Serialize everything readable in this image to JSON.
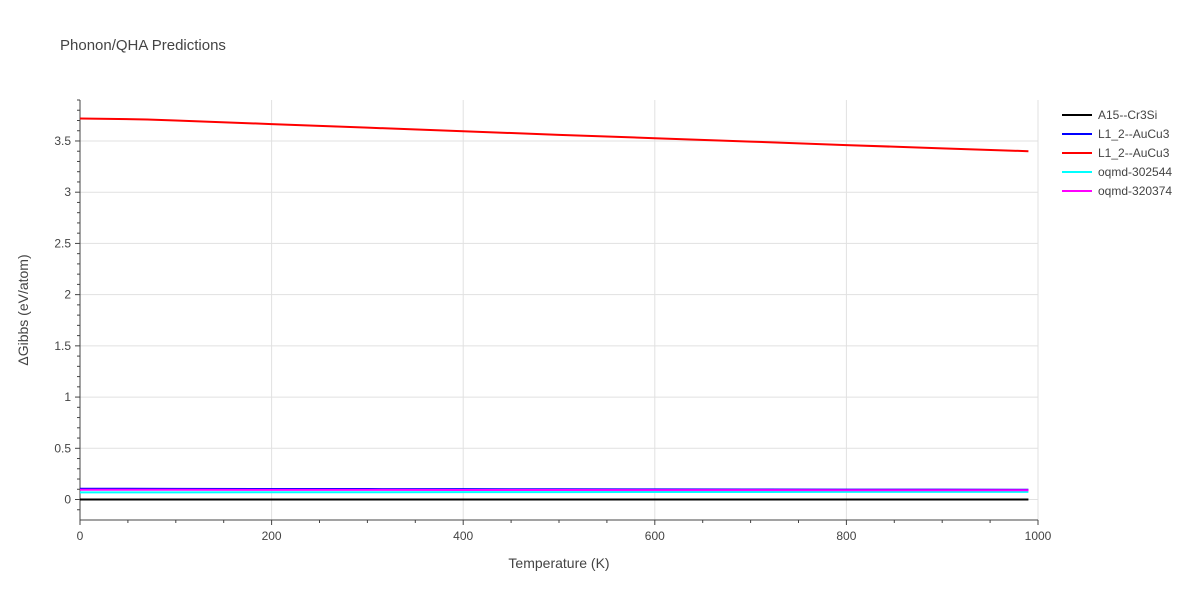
{
  "chart_data": {
    "type": "line",
    "title": "Phonon/QHA Predictions",
    "xlabel": "Temperature (K)",
    "ylabel": "ΔGibbs (eV/atom)",
    "xlim": [
      0,
      1000
    ],
    "ylim": [
      -0.2,
      3.9
    ],
    "grid": true,
    "legend_position": "top-right",
    "x_ticks": [
      0,
      200,
      400,
      600,
      800,
      1000
    ],
    "x_tick_labels": [
      "0",
      "200",
      "400",
      "600",
      "800",
      "1000"
    ],
    "y_ticks": [
      0,
      0.5,
      1,
      1.5,
      2,
      2.5,
      3,
      3.5
    ],
    "y_tick_labels": [
      "0",
      "0.5",
      "1",
      "1.5",
      "2",
      "2.5",
      "3",
      "3.5"
    ],
    "series": [
      {
        "name": "A15--Cr3Si",
        "color": "#000000",
        "x": [
          0,
          100,
          200,
          300,
          400,
          500,
          600,
          700,
          800,
          900,
          990
        ],
        "y": [
          0,
          0,
          0,
          0,
          0,
          0,
          0,
          0,
          0,
          0,
          0
        ]
      },
      {
        "name": "L1_2--AuCu3",
        "color": "#0000ff",
        "x": [
          0,
          100,
          200,
          300,
          400,
          500,
          600,
          700,
          800,
          900,
          990
        ],
        "y": [
          0.105,
          0.104,
          0.103,
          0.102,
          0.101,
          0.1,
          0.099,
          0.098,
          0.097,
          0.096,
          0.095
        ]
      },
      {
        "name": "L1_2--AuCu3",
        "color": "#ff0000",
        "x": [
          0,
          70,
          100,
          200,
          300,
          400,
          500,
          600,
          700,
          800,
          900,
          990
        ],
        "y": [
          3.72,
          3.71,
          3.7,
          3.665,
          3.63,
          3.595,
          3.56,
          3.527,
          3.494,
          3.46,
          3.428,
          3.4
        ]
      },
      {
        "name": "oqmd-302544",
        "color": "#00ffff",
        "x": [
          0,
          100,
          200,
          300,
          400,
          500,
          600,
          700,
          800,
          900,
          990
        ],
        "y": [
          0.07,
          0.07,
          0.071,
          0.071,
          0.072,
          0.072,
          0.073,
          0.073,
          0.074,
          0.074,
          0.075
        ]
      },
      {
        "name": "oqmd-320374",
        "color": "#ff00ff",
        "x": [
          0,
          100,
          200,
          300,
          400,
          500,
          600,
          700,
          800,
          900,
          990
        ],
        "y": [
          0.095,
          0.095,
          0.094,
          0.094,
          0.093,
          0.093,
          0.092,
          0.092,
          0.091,
          0.091,
          0.09
        ]
      }
    ]
  }
}
